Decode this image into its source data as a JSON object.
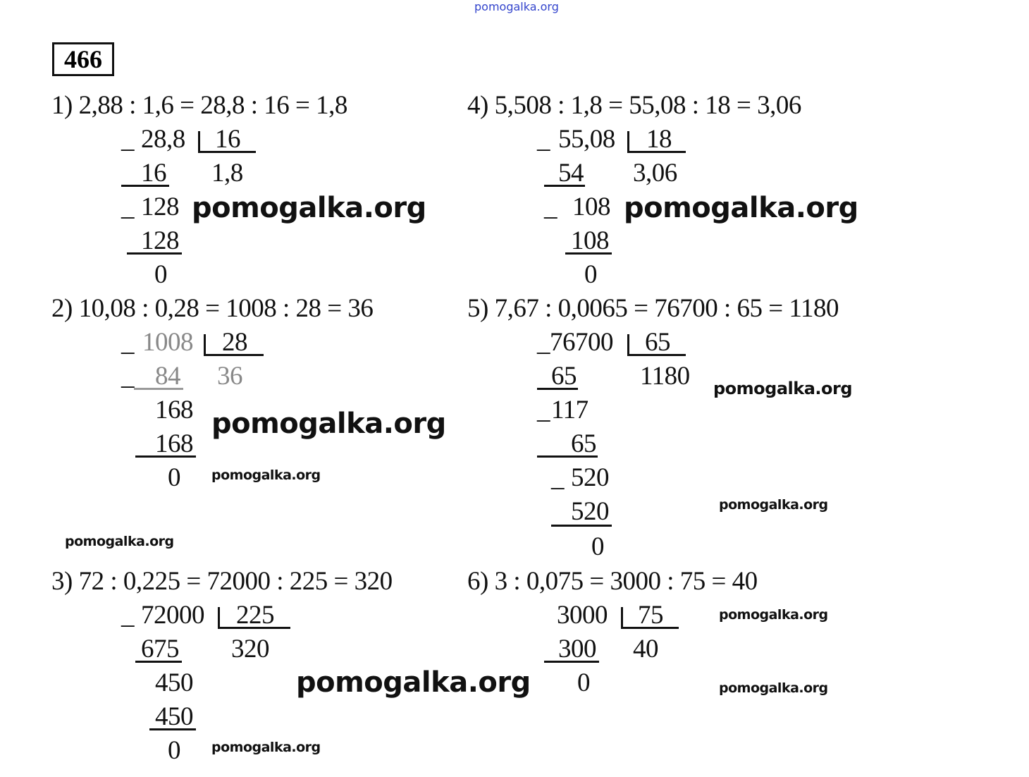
{
  "watermark": "pomogalka.org",
  "exercise_number": "466",
  "problems": [
    {
      "header": "1) 2,88 : 1,6 = 28,8 : 16 = 1,8",
      "dividend": "28,8",
      "divisor": "16",
      "quotient": "1,8",
      "steps": [
        "16",
        "128",
        "128",
        "0"
      ]
    },
    {
      "header": "2) 10,08 : 0,28 = 1008 : 28 = 36",
      "dividend": "1008",
      "divisor": "28",
      "quotient": "36",
      "steps": [
        "84",
        "168",
        "168",
        "0"
      ]
    },
    {
      "header": "3) 72 : 0,225 = 72000 : 225 = 320",
      "dividend": "72000",
      "divisor": "225",
      "quotient": "320",
      "steps": [
        "675",
        "450",
        "450",
        "0"
      ]
    },
    {
      "header": "4) 5,508 : 1,8 = 55,08 : 18 = 3,06",
      "dividend": "55,08",
      "divisor": "18",
      "quotient": "3,06",
      "steps": [
        "54",
        "108",
        "108",
        "0"
      ]
    },
    {
      "header": "5) 7,67 : 0,0065 = 76700 : 65 = 1180",
      "dividend": "76700",
      "divisor": "65",
      "quotient": "1180",
      "steps": [
        "65",
        "117",
        "65",
        "520",
        "520",
        "0"
      ]
    },
    {
      "header": "6) 3 : 0,075 = 3000 : 75 = 40",
      "dividend": "3000",
      "divisor": "75",
      "quotient": "40",
      "steps": [
        "300",
        "0"
      ]
    }
  ],
  "minus_sign": "_"
}
